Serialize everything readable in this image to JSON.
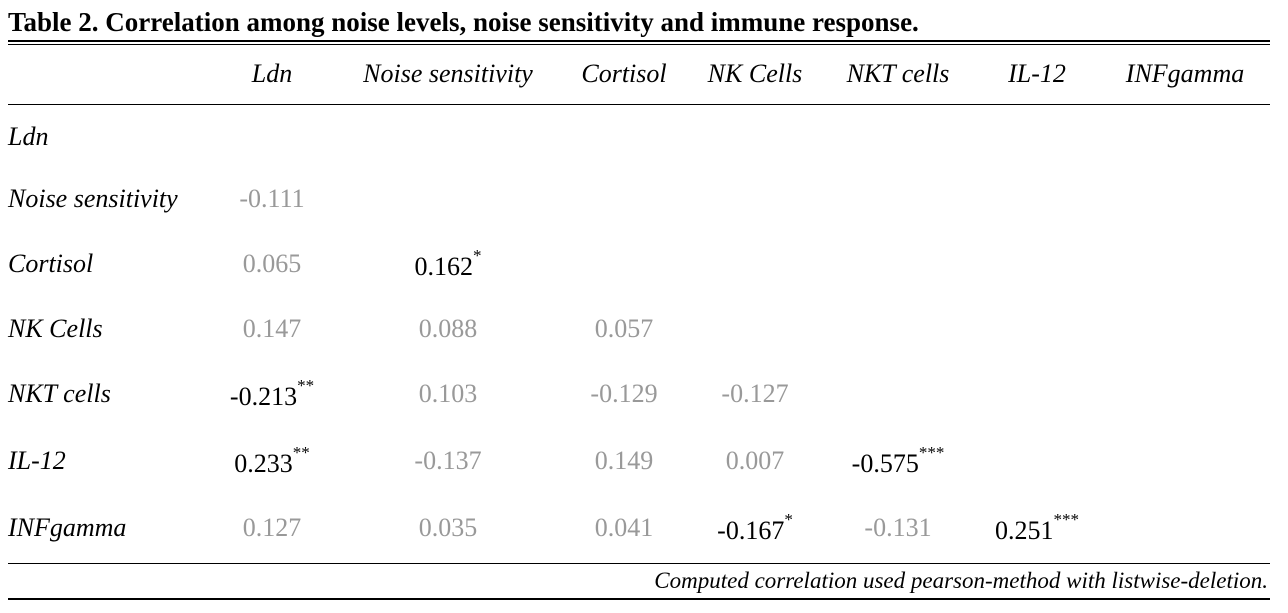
{
  "title": "Table 2. Correlation among noise levels, noise sensitivity and immune response.",
  "columns": [
    "Ldn",
    "Noise sensitivity",
    "Cortisol",
    "NK Cells",
    "NKT cells",
    "IL-12",
    "INFgamma"
  ],
  "rows": [
    {
      "label": "Ldn",
      "cells": []
    },
    {
      "label": "Noise sensitivity",
      "cells": [
        {
          "value": "-0.111",
          "stars": "",
          "significant": false
        }
      ]
    },
    {
      "label": "Cortisol",
      "cells": [
        {
          "value": "0.065",
          "stars": "",
          "significant": false
        },
        {
          "value": "0.162",
          "stars": "*",
          "significant": true
        }
      ]
    },
    {
      "label": "NK Cells",
      "cells": [
        {
          "value": "0.147",
          "stars": "",
          "significant": false
        },
        {
          "value": "0.088",
          "stars": "",
          "significant": false
        },
        {
          "value": "0.057",
          "stars": "",
          "significant": false
        }
      ]
    },
    {
      "label": "NKT cells",
      "cells": [
        {
          "value": "-0.213",
          "stars": "**",
          "significant": true
        },
        {
          "value": "0.103",
          "stars": "",
          "significant": false
        },
        {
          "value": "-0.129",
          "stars": "",
          "significant": false
        },
        {
          "value": "-0.127",
          "stars": "",
          "significant": false
        }
      ]
    },
    {
      "label": "IL-12",
      "cells": [
        {
          "value": "0.233",
          "stars": "**",
          "significant": true
        },
        {
          "value": "-0.137",
          "stars": "",
          "significant": false
        },
        {
          "value": "0.149",
          "stars": "",
          "significant": false
        },
        {
          "value": "0.007",
          "stars": "",
          "significant": false
        },
        {
          "value": "-0.575",
          "stars": "***",
          "significant": true
        }
      ]
    },
    {
      "label": "INFgamma",
      "cells": [
        {
          "value": "0.127",
          "stars": "",
          "significant": false
        },
        {
          "value": "0.035",
          "stars": "",
          "significant": false
        },
        {
          "value": "0.041",
          "stars": "",
          "significant": false
        },
        {
          "value": "-0.167",
          "stars": "*",
          "significant": true
        },
        {
          "value": "-0.131",
          "stars": "",
          "significant": false
        },
        {
          "value": "0.251",
          "stars": "***",
          "significant": true
        }
      ]
    }
  ],
  "footnote": "Computed correlation used pearson-method with listwise-deletion.",
  "colors": {
    "significant": "#000000",
    "nonsignificant": "#999999"
  }
}
